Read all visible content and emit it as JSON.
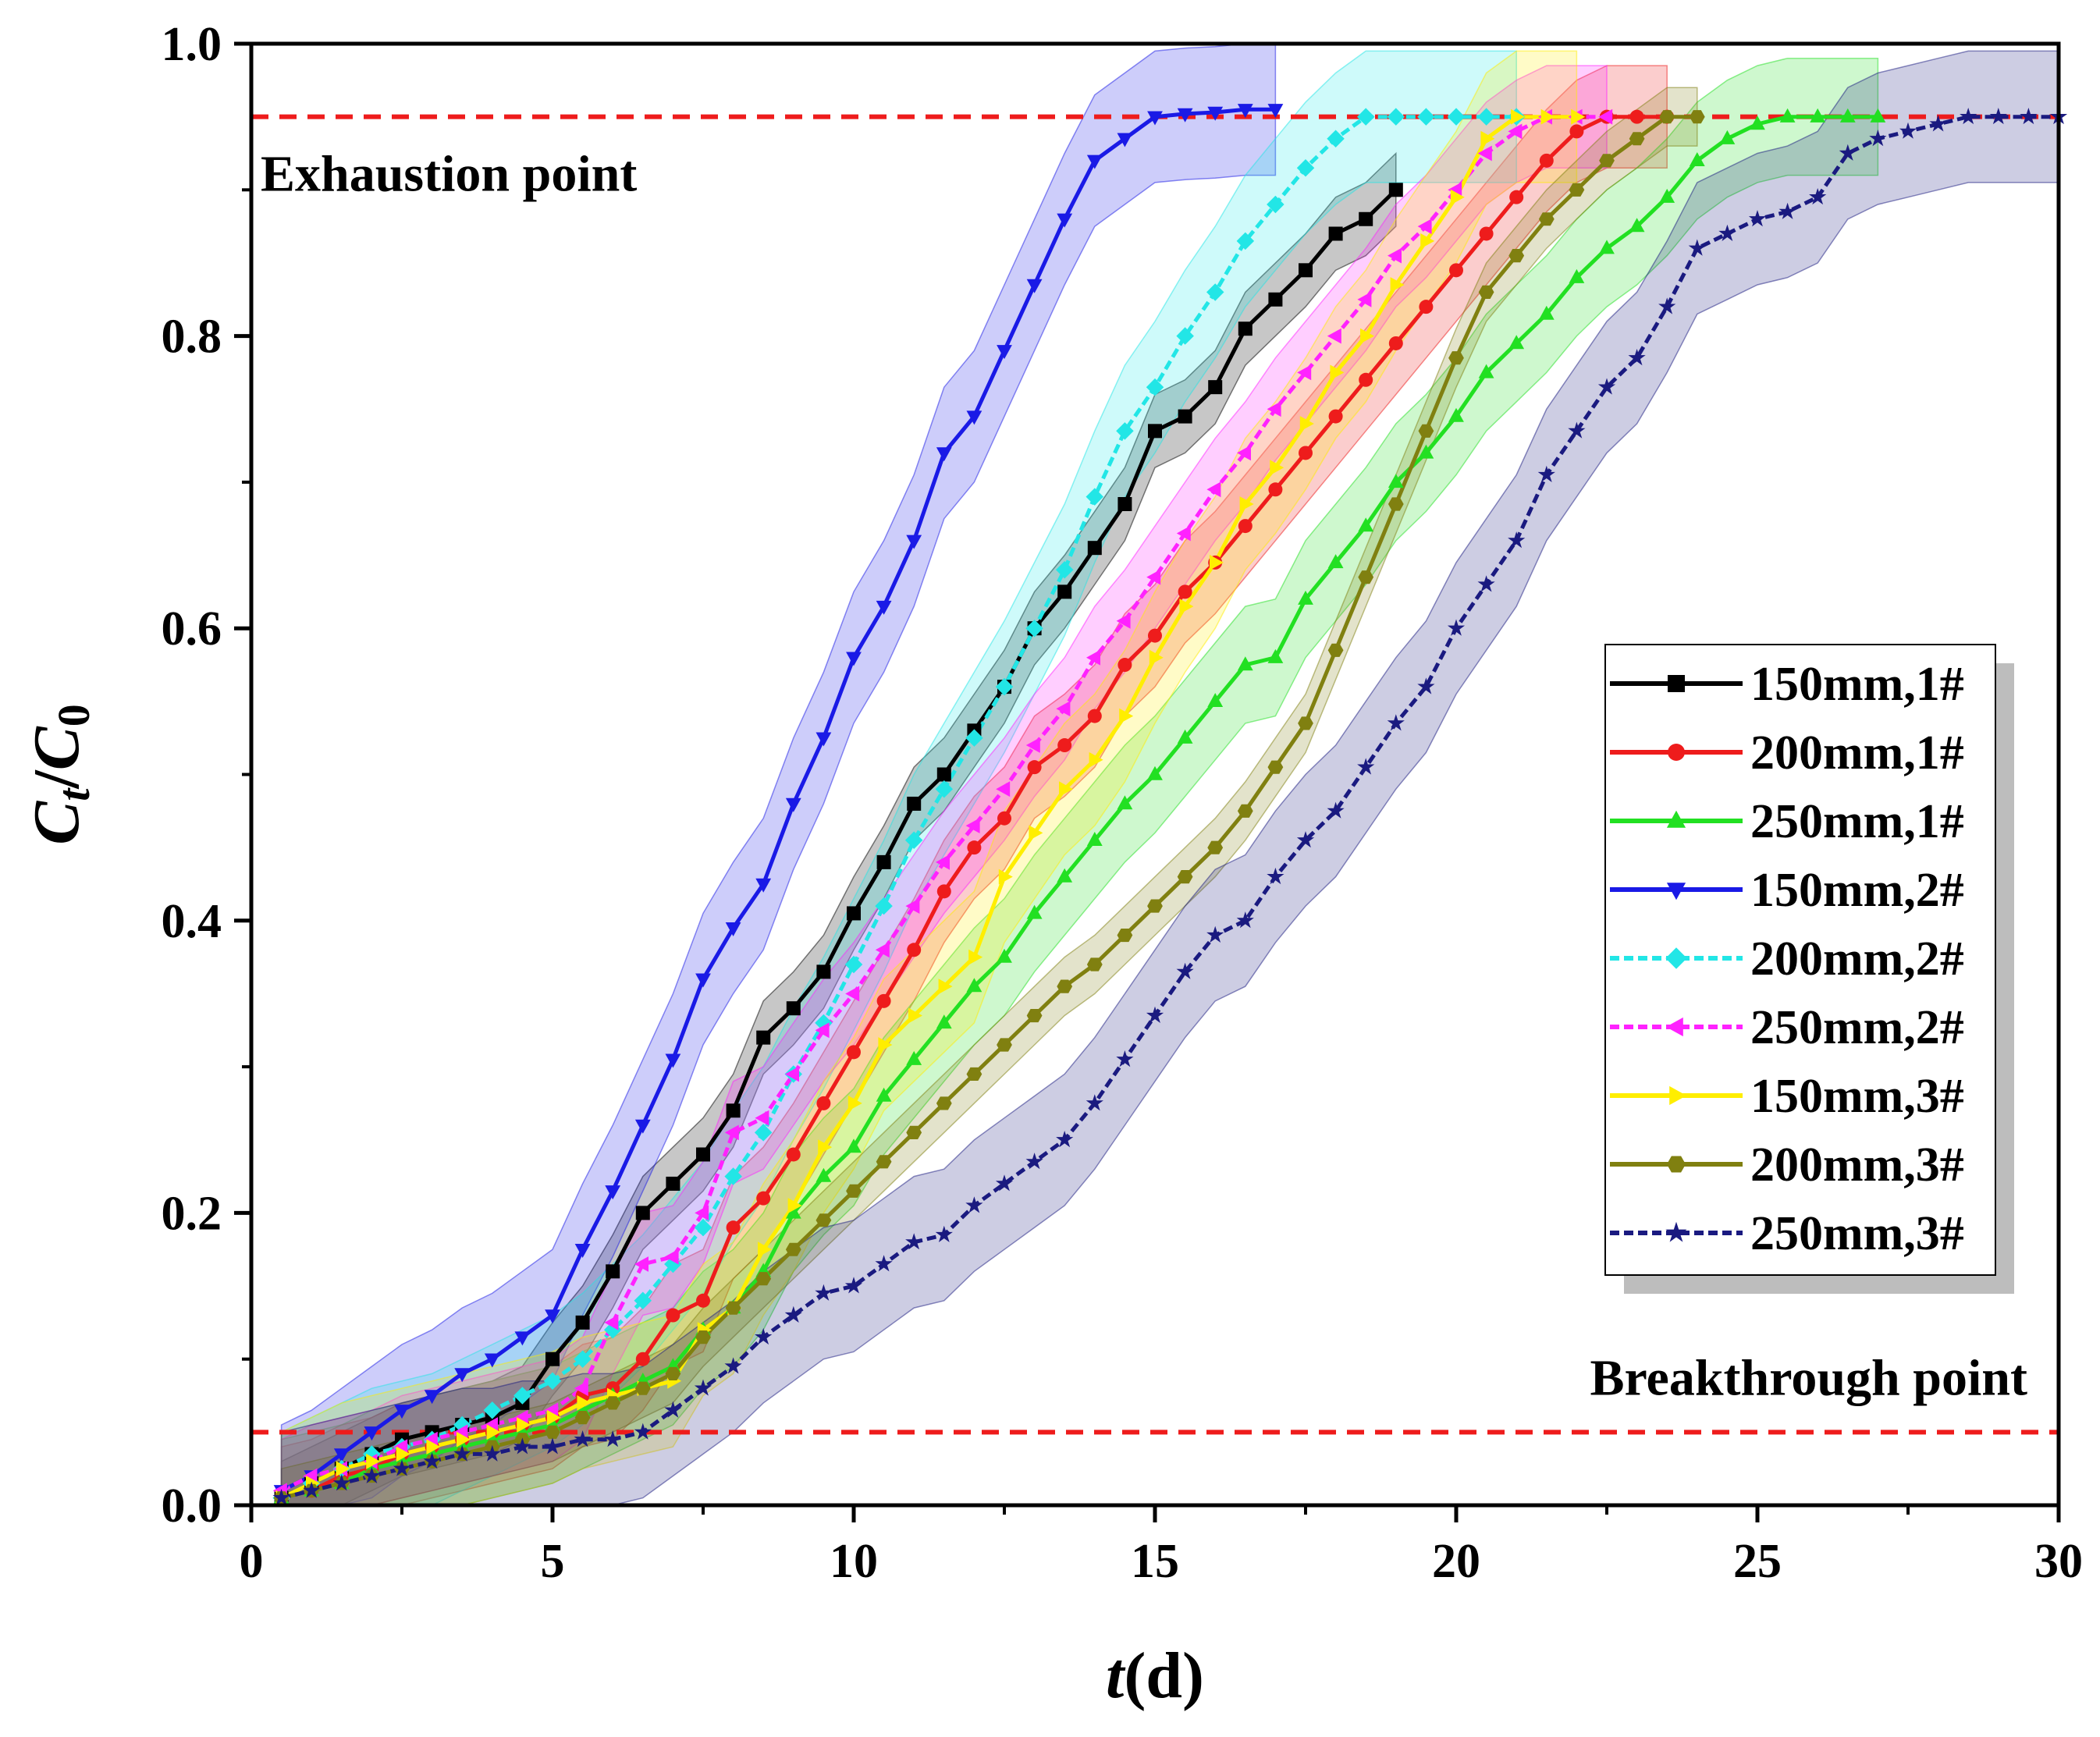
{
  "chart_data": {
    "type": "line",
    "title": "",
    "xlabel": {
      "italic": "t",
      "unit": "(d)"
    },
    "ylabel": {
      "main": "C",
      "num_sub": "t",
      "slash": "/",
      "den": "C",
      "den_sub": "0"
    },
    "xlim": [
      0,
      30
    ],
    "ylim": [
      0,
      1.0
    ],
    "xticks": [
      0,
      5,
      10,
      15,
      20,
      25,
      30
    ],
    "xtick_labels": [
      "0",
      "5",
      "10",
      "15",
      "20",
      "25",
      "30"
    ],
    "yticks": [
      0,
      0.2,
      0.4,
      0.6,
      0.8,
      1.0
    ],
    "ytick_labels": [
      "0.0",
      "0.2",
      "0.4",
      "0.6",
      "0.8",
      "1.0"
    ],
    "grid": false,
    "legend_position": "right",
    "reference_lines": [
      {
        "name": "exhaustion",
        "y": 0.95,
        "color": "#ee1c1c",
        "label": "Exhaustion point"
      },
      {
        "name": "breakthrough",
        "y": 0.05,
        "color": "#ee1c1c",
        "label": "Breakthrough point"
      }
    ],
    "series": [
      {
        "name": "150mm,1#",
        "color": "#000000",
        "marker": "square",
        "dash": "",
        "band": 0.025,
        "x": [
          0.5,
          1,
          1.5,
          2,
          2.5,
          3,
          3.5,
          4,
          4.5,
          5,
          5.5,
          6,
          6.5,
          7,
          7.5,
          8,
          8.5,
          9,
          9.5,
          10,
          10.5,
          11,
          11.5,
          12,
          12.5,
          13,
          13.5,
          14,
          14.5,
          15,
          15.5,
          16,
          16.5,
          17,
          17.5,
          18,
          18.5,
          19
        ],
        "y": [
          0.005,
          0.015,
          0.025,
          0.035,
          0.045,
          0.05,
          0.055,
          0.06,
          0.07,
          0.1,
          0.125,
          0.16,
          0.2,
          0.22,
          0.24,
          0.27,
          0.32,
          0.34,
          0.365,
          0.405,
          0.44,
          0.48,
          0.5,
          0.53,
          0.56,
          0.6,
          0.625,
          0.655,
          0.685,
          0.735,
          0.745,
          0.765,
          0.805,
          0.825,
          0.845,
          0.87,
          0.88,
          0.9
        ]
      },
      {
        "name": "200mm,1#",
        "color": "#ee1c1c",
        "marker": "circle",
        "dash": "",
        "band": 0.035,
        "x": [
          0.5,
          1,
          1.5,
          2,
          2.5,
          3,
          3.5,
          4,
          4.5,
          5,
          5.5,
          6,
          6.5,
          7,
          7.5,
          8,
          8.5,
          9,
          9.5,
          10,
          10.5,
          11,
          11.5,
          12,
          12.5,
          13,
          13.5,
          14,
          14.5,
          15,
          15.5,
          16,
          16.5,
          17,
          17.5,
          18,
          18.5,
          19,
          19.5,
          20,
          20.5,
          21,
          21.5,
          22,
          22.5,
          23,
          23.5
        ],
        "y": [
          0.005,
          0.01,
          0.02,
          0.025,
          0.035,
          0.04,
          0.045,
          0.05,
          0.055,
          0.06,
          0.075,
          0.08,
          0.1,
          0.13,
          0.14,
          0.19,
          0.21,
          0.24,
          0.275,
          0.31,
          0.345,
          0.38,
          0.42,
          0.45,
          0.47,
          0.505,
          0.52,
          0.54,
          0.575,
          0.595,
          0.625,
          0.645,
          0.67,
          0.695,
          0.72,
          0.745,
          0.77,
          0.795,
          0.82,
          0.845,
          0.87,
          0.895,
          0.92,
          0.94,
          0.95,
          0.95,
          0.95
        ]
      },
      {
        "name": "250mm,1#",
        "color": "#22e022",
        "marker": "triangle-up",
        "dash": "",
        "band": 0.04,
        "x": [
          0.5,
          1,
          1.5,
          2,
          2.5,
          3,
          3.5,
          4,
          4.5,
          5,
          5.5,
          6,
          6.5,
          7,
          7.5,
          8,
          8.5,
          9,
          9.5,
          10,
          10.5,
          11,
          11.5,
          12,
          12.5,
          13,
          13.5,
          14,
          14.5,
          15,
          15.5,
          16,
          16.5,
          17,
          17.5,
          18,
          18.5,
          19,
          19.5,
          20,
          20.5,
          21,
          21.5,
          22,
          22.5,
          23,
          23.5,
          24,
          24.5,
          25,
          25.5,
          26,
          26.5,
          27
        ],
        "y": [
          0.005,
          0.01,
          0.015,
          0.025,
          0.03,
          0.035,
          0.04,
          0.045,
          0.05,
          0.055,
          0.065,
          0.075,
          0.085,
          0.095,
          0.12,
          0.135,
          0.16,
          0.2,
          0.225,
          0.245,
          0.28,
          0.305,
          0.33,
          0.355,
          0.375,
          0.405,
          0.43,
          0.455,
          0.48,
          0.5,
          0.525,
          0.55,
          0.575,
          0.58,
          0.62,
          0.645,
          0.67,
          0.7,
          0.72,
          0.745,
          0.775,
          0.795,
          0.815,
          0.84,
          0.86,
          0.875,
          0.895,
          0.92,
          0.935,
          0.945,
          0.95,
          0.95,
          0.95,
          0.95
        ]
      },
      {
        "name": "150mm,2#",
        "color": "#1a1ae6",
        "marker": "triangle-down",
        "dash": "",
        "band": 0.045,
        "x": [
          0.5,
          1,
          1.5,
          2,
          2.5,
          3,
          3.5,
          4,
          4.5,
          5,
          5.5,
          6,
          6.5,
          7,
          7.5,
          8,
          8.5,
          9,
          9.5,
          10,
          10.5,
          11,
          11.5,
          12,
          12.5,
          13,
          13.5,
          14,
          14.5,
          15,
          15.5,
          16,
          16.5,
          17
        ],
        "y": [
          0.01,
          0.02,
          0.035,
          0.05,
          0.065,
          0.075,
          0.09,
          0.1,
          0.115,
          0.13,
          0.175,
          0.215,
          0.26,
          0.305,
          0.36,
          0.395,
          0.425,
          0.48,
          0.525,
          0.58,
          0.615,
          0.66,
          0.72,
          0.745,
          0.79,
          0.835,
          0.88,
          0.92,
          0.935,
          0.95,
          0.952,
          0.953,
          0.955,
          0.955
        ]
      },
      {
        "name": "200mm,2#",
        "color": "#22e6e6",
        "marker": "diamond",
        "dash": "12,6",
        "band": 0.045,
        "x": [
          0.5,
          1,
          1.5,
          2,
          2.5,
          3,
          3.5,
          4,
          4.5,
          5,
          5.5,
          6,
          6.5,
          7,
          7.5,
          8,
          8.5,
          9,
          9.5,
          10,
          10.5,
          11,
          11.5,
          12,
          12.5,
          13,
          13.5,
          14,
          14.5,
          15,
          15.5,
          16,
          16.5,
          17,
          17.5,
          18,
          18.5,
          19,
          19.5,
          20,
          20.5,
          21
        ],
        "y": [
          0.005,
          0.015,
          0.025,
          0.035,
          0.04,
          0.045,
          0.055,
          0.065,
          0.075,
          0.085,
          0.1,
          0.12,
          0.14,
          0.165,
          0.19,
          0.225,
          0.255,
          0.295,
          0.33,
          0.37,
          0.41,
          0.455,
          0.49,
          0.525,
          0.56,
          0.6,
          0.64,
          0.69,
          0.735,
          0.765,
          0.8,
          0.83,
          0.865,
          0.89,
          0.915,
          0.935,
          0.95,
          0.95,
          0.95,
          0.95,
          0.95,
          0.95
        ]
      },
      {
        "name": "250mm,2#",
        "color": "#ff22ff",
        "marker": "triangle-left",
        "dash": "12,6",
        "band": 0.035,
        "x": [
          0.5,
          1,
          1.5,
          2,
          2.5,
          3,
          3.5,
          4,
          4.5,
          5,
          5.5,
          6,
          6.5,
          7,
          7.5,
          8,
          8.5,
          9,
          9.5,
          10,
          10.5,
          11,
          11.5,
          12,
          12.5,
          13,
          13.5,
          14,
          14.5,
          15,
          15.5,
          16,
          16.5,
          17,
          17.5,
          18,
          18.5,
          19,
          19.5,
          20,
          20.5,
          21,
          21.5,
          22,
          22.5
        ],
        "y": [
          0.01,
          0.02,
          0.025,
          0.03,
          0.04,
          0.045,
          0.05,
          0.055,
          0.06,
          0.065,
          0.08,
          0.125,
          0.165,
          0.17,
          0.2,
          0.255,
          0.265,
          0.295,
          0.325,
          0.35,
          0.38,
          0.41,
          0.44,
          0.465,
          0.49,
          0.52,
          0.545,
          0.58,
          0.605,
          0.635,
          0.665,
          0.695,
          0.72,
          0.75,
          0.775,
          0.8,
          0.825,
          0.855,
          0.875,
          0.9,
          0.925,
          0.94,
          0.95,
          0.95,
          0.95
        ]
      },
      {
        "name": "150mm,3#",
        "color": "#ffee00",
        "marker": "triangle-right",
        "dash": "",
        "band": 0.045,
        "x": [
          0.5,
          1,
          1.5,
          2,
          2.5,
          3,
          3.5,
          4,
          4.5,
          5,
          5.5,
          6,
          6.5,
          7,
          7.5,
          8,
          8.5,
          9,
          9.5,
          10,
          10.5,
          11,
          11.5,
          12,
          12.5,
          13,
          13.5,
          14,
          14.5,
          15,
          15.5,
          16,
          16.5,
          17,
          17.5,
          18,
          18.5,
          19,
          19.5,
          20,
          20.5,
          21,
          21.5,
          22
        ],
        "y": [
          0.005,
          0.015,
          0.025,
          0.03,
          0.035,
          0.04,
          0.045,
          0.05,
          0.055,
          0.06,
          0.07,
          0.075,
          0.08,
          0.085,
          0.12,
          0.135,
          0.175,
          0.205,
          0.245,
          0.275,
          0.315,
          0.335,
          0.355,
          0.375,
          0.43,
          0.46,
          0.49,
          0.51,
          0.54,
          0.58,
          0.615,
          0.645,
          0.685,
          0.71,
          0.74,
          0.775,
          0.8,
          0.835,
          0.865,
          0.895,
          0.935,
          0.95,
          0.95,
          0.95
        ]
      },
      {
        "name": "200mm,3#",
        "color": "#808010",
        "marker": "hexagon",
        "dash": "",
        "band": 0.02,
        "x": [
          0.5,
          1,
          1.5,
          2,
          2.5,
          3,
          3.5,
          4,
          4.5,
          5,
          5.5,
          6,
          6.5,
          7,
          7.5,
          8,
          8.5,
          9,
          9.5,
          10,
          10.5,
          11,
          11.5,
          12,
          12.5,
          13,
          13.5,
          14,
          14.5,
          15,
          15.5,
          16,
          16.5,
          17,
          17.5,
          18,
          18.5,
          19,
          19.5,
          20,
          20.5,
          21,
          21.5,
          22,
          22.5,
          23,
          23.5,
          24
        ],
        "y": [
          0.005,
          0.01,
          0.015,
          0.02,
          0.025,
          0.03,
          0.035,
          0.04,
          0.045,
          0.05,
          0.06,
          0.07,
          0.08,
          0.09,
          0.115,
          0.135,
          0.155,
          0.175,
          0.195,
          0.215,
          0.235,
          0.255,
          0.275,
          0.295,
          0.315,
          0.335,
          0.355,
          0.37,
          0.39,
          0.41,
          0.43,
          0.45,
          0.475,
          0.505,
          0.535,
          0.585,
          0.635,
          0.685,
          0.735,
          0.785,
          0.83,
          0.855,
          0.88,
          0.9,
          0.92,
          0.935,
          0.95,
          0.95
        ]
      },
      {
        "name": "250mm,3#",
        "color": "#1a1a80",
        "marker": "star",
        "dash": "12,6",
        "band": 0.045,
        "x": [
          0.5,
          1,
          1.5,
          2,
          2.5,
          3,
          3.5,
          4,
          4.5,
          5,
          5.5,
          6,
          6.5,
          7,
          7.5,
          8,
          8.5,
          9,
          9.5,
          10,
          10.5,
          11,
          11.5,
          12,
          12.5,
          13,
          13.5,
          14,
          14.5,
          15,
          15.5,
          16,
          16.5,
          17,
          17.5,
          18,
          18.5,
          19,
          19.5,
          20,
          20.5,
          21,
          21.5,
          22,
          22.5,
          23,
          23.5,
          24,
          24.5,
          25,
          25.5,
          26,
          26.5,
          27,
          27.5,
          28,
          28.5,
          29,
          29.5,
          30
        ],
        "y": [
          0.005,
          0.01,
          0.015,
          0.02,
          0.025,
          0.03,
          0.035,
          0.035,
          0.04,
          0.04,
          0.045,
          0.045,
          0.05,
          0.065,
          0.08,
          0.095,
          0.115,
          0.13,
          0.145,
          0.15,
          0.165,
          0.18,
          0.185,
          0.205,
          0.22,
          0.235,
          0.25,
          0.275,
          0.305,
          0.335,
          0.365,
          0.39,
          0.4,
          0.43,
          0.455,
          0.475,
          0.505,
          0.535,
          0.56,
          0.6,
          0.63,
          0.66,
          0.705,
          0.735,
          0.765,
          0.785,
          0.82,
          0.86,
          0.87,
          0.88,
          0.885,
          0.895,
          0.925,
          0.935,
          0.94,
          0.945,
          0.95,
          0.95,
          0.95,
          0.95
        ]
      }
    ]
  }
}
